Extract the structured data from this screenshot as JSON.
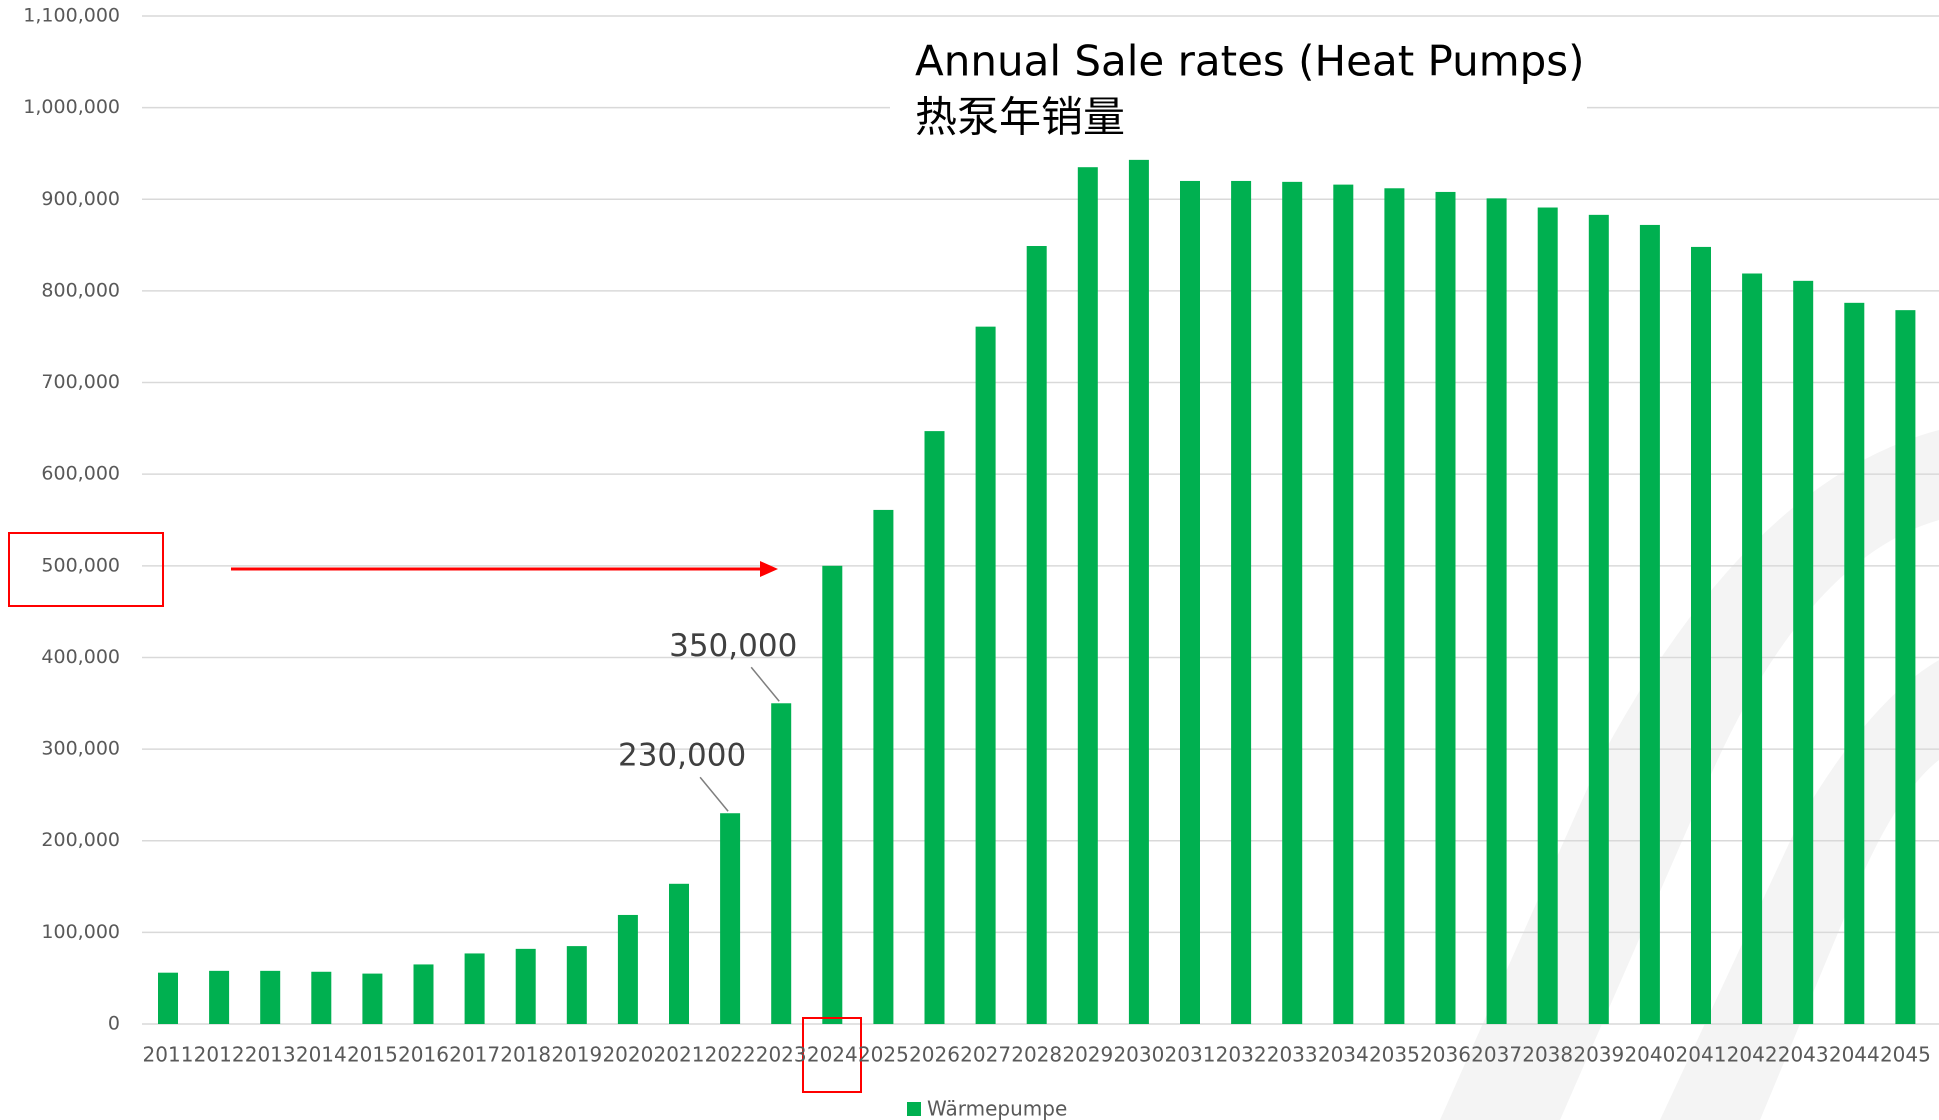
{
  "chart_data": {
    "type": "bar",
    "title": "Annual Sale rates (Heat Pumps)",
    "subtitle": "热泵年销量",
    "categories": [
      "2011",
      "2012",
      "2013",
      "2014",
      "2015",
      "2016",
      "2017",
      "2018",
      "2019",
      "2020",
      "2021",
      "2022",
      "2023",
      "2024",
      "2025",
      "2026",
      "2027",
      "2028",
      "2029",
      "2030",
      "2031",
      "2032",
      "2033",
      "2034",
      "2035",
      "2036",
      "2037",
      "2038",
      "2039",
      "2040",
      "2041",
      "2042",
      "2043",
      "2044",
      "2045"
    ],
    "series": [
      {
        "name": "Wärmepumpe",
        "color": "#00b050",
        "values": [
          56000,
          58000,
          58000,
          57000,
          55000,
          65000,
          77000,
          82000,
          85000,
          119000,
          153000,
          230000,
          350000,
          500000,
          561000,
          647000,
          761000,
          849000,
          935000,
          943000,
          920000,
          920000,
          919000,
          916000,
          912000,
          908000,
          901000,
          891000,
          883000,
          872000,
          848000,
          819000,
          811000,
          787000,
          779000
        ],
        "value_labels": [
          null,
          null,
          null,
          null,
          null,
          null,
          null,
          null,
          null,
          null,
          null,
          "230,000",
          "350,000",
          null,
          null,
          null,
          null,
          null,
          null,
          null,
          null,
          null,
          null,
          null,
          null,
          null,
          null,
          null,
          null,
          null,
          null,
          null,
          null,
          null,
          null
        ]
      }
    ],
    "ylim": [
      0,
      1100000
    ],
    "yticks": [
      0,
      {
        "value": 100000,
        "label": "100,000"
      },
      {
        "value": 200000,
        "label": "200,000"
      },
      {
        "value": 300000,
        "label": "300,000"
      },
      {
        "value": 400000,
        "label": "400,000"
      },
      {
        "value": 500000,
        "label": "500,000"
      },
      {
        "value": 600000,
        "label": "600,000"
      },
      {
        "value": 700000,
        "label": "700,000"
      },
      {
        "value": 800000,
        "label": "800,000"
      },
      {
        "value": 900000,
        "label": "900,000"
      },
      {
        "value": 1000000,
        "label": "1,000,000"
      },
      {
        "value": 1100000,
        "label": "1,100,000"
      }
    ],
    "grid": true,
    "legend": "bottom"
  }
}
